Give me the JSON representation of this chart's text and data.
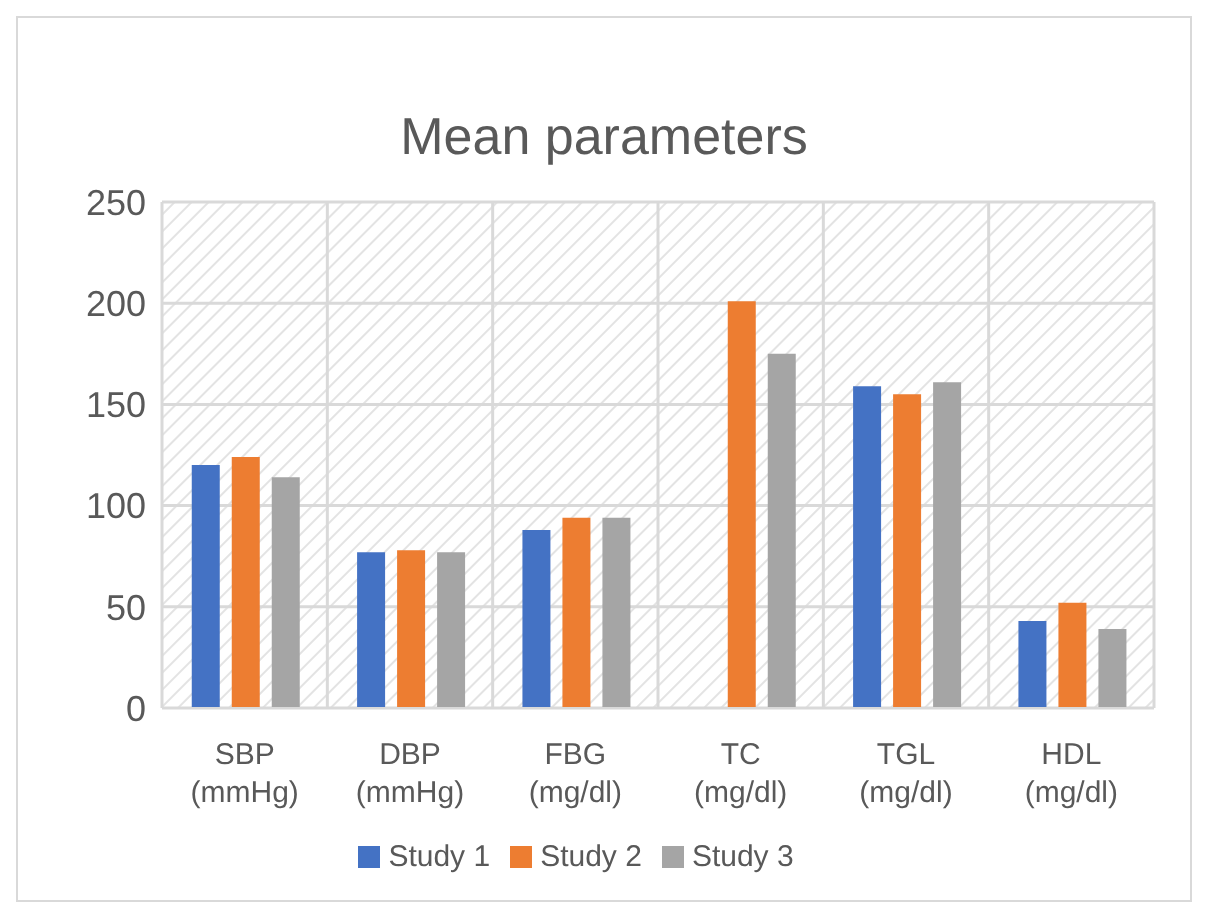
{
  "chart_data": {
    "type": "bar",
    "title": "Mean parameters",
    "categories": [
      "SBP (mmHg)",
      "DBP (mmHg)",
      "FBG (mg/dl)",
      "TC (mg/dl)",
      "TGL (mg/dl)",
      "HDL (mg/dl)"
    ],
    "series": [
      {
        "name": "Study 1",
        "color": "#4472c4",
        "values": [
          120,
          77,
          88,
          null,
          159,
          43
        ]
      },
      {
        "name": "Study 2",
        "color": "#ed7d31",
        "values": [
          124,
          78,
          94,
          201,
          155,
          52
        ]
      },
      {
        "name": "Study 3",
        "color": "#a5a5a5",
        "values": [
          114,
          77,
          94,
          175,
          161,
          39
        ]
      }
    ],
    "ylim": [
      0,
      250
    ],
    "yticks": [
      0,
      50,
      100,
      150,
      200,
      250
    ],
    "grid": true,
    "legend": "bottom"
  }
}
